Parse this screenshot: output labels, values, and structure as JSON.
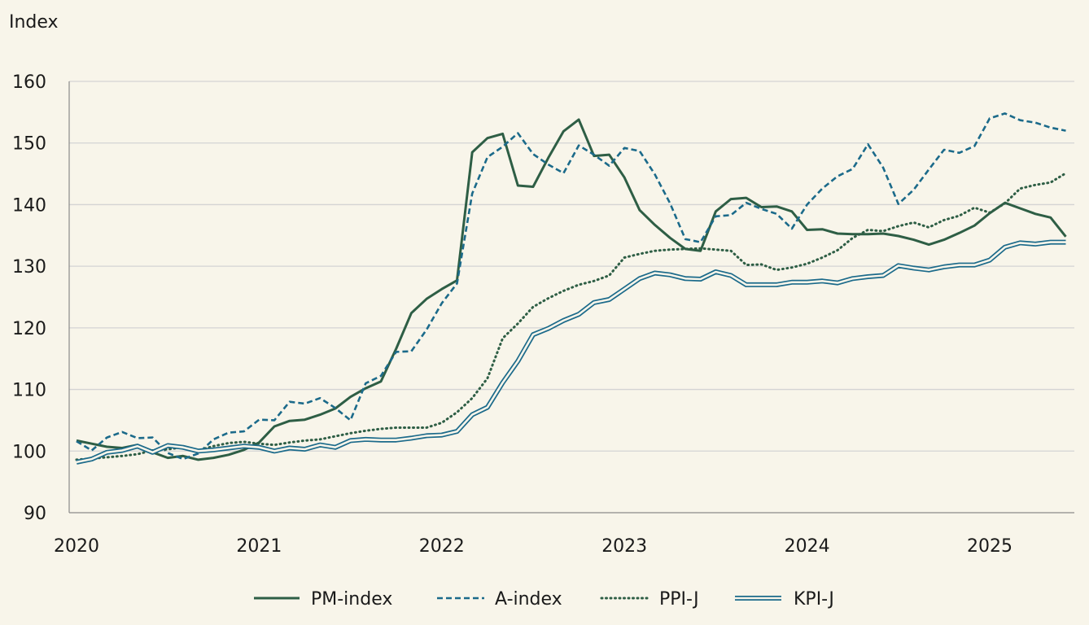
{
  "chart_data": {
    "type": "line",
    "ylabel": "Index",
    "ylim": [
      90,
      160
    ],
    "yticks": [
      90,
      100,
      110,
      120,
      130,
      140,
      150,
      160
    ],
    "xticks": [
      "2020",
      "2021",
      "2022",
      "2023",
      "2024",
      "2025"
    ],
    "x_start": "2020-01",
    "grid": "horizontal",
    "legend_position": "bottom",
    "series": [
      {
        "name": "PM-index",
        "style": "solid",
        "color": "#2e5e45",
        "values": [
          101.7,
          101.2,
          100.7,
          100.5,
          101.0,
          99.8,
          98.9,
          99.2,
          98.6,
          98.9,
          99.4,
          100.2,
          101.4,
          104.0,
          104.9,
          105.1,
          105.9,
          106.9,
          108.8,
          110.2,
          111.3,
          116.6,
          122.4,
          124.7,
          126.3,
          127.7,
          148.5,
          150.8,
          151.5,
          143.1,
          142.9,
          147.6,
          151.9,
          153.8,
          147.9,
          148.1,
          144.4,
          139.1,
          136.7,
          134.6,
          132.8,
          132.5,
          138.9,
          140.9,
          141.1,
          139.6,
          139.7,
          138.9,
          135.9,
          136.0,
          135.3,
          135.2,
          135.2,
          135.3,
          134.9,
          134.3,
          133.5,
          134.3,
          135.4,
          136.6,
          138.6,
          140.3,
          139.4,
          138.5,
          137.9,
          134.8
        ]
      },
      {
        "name": "A-index",
        "style": "dashed",
        "color": "#1b6a8a",
        "values": [
          101.6,
          100.1,
          102.2,
          103.1,
          102.1,
          102.2,
          99.7,
          98.7,
          99.6,
          101.9,
          103.0,
          103.2,
          105.1,
          105.0,
          108.0,
          107.7,
          108.6,
          107.0,
          105.0,
          111.0,
          112.2,
          116.1,
          116.2,
          119.7,
          124.0,
          127.2,
          141.8,
          147.7,
          149.4,
          151.6,
          148.2,
          146.5,
          145.1,
          149.6,
          148.1,
          146.3,
          149.2,
          148.7,
          144.9,
          140.2,
          134.4,
          133.9,
          138.1,
          138.3,
          140.3,
          139.3,
          138.5,
          136.1,
          140.0,
          142.6,
          144.6,
          145.8,
          149.8,
          146.0,
          140.1,
          142.4,
          145.7,
          148.9,
          148.4,
          149.5,
          154.0,
          154.8,
          153.7,
          153.3,
          152.5,
          152.0
        ]
      },
      {
        "name": "PPI-J",
        "style": "dotted",
        "color": "#2e5e45",
        "values": [
          98.6,
          98.8,
          99.0,
          99.2,
          99.5,
          100.1,
          100.3,
          100.6,
          100.1,
          100.8,
          101.3,
          101.5,
          101.2,
          101.0,
          101.4,
          101.7,
          101.9,
          102.4,
          102.9,
          103.3,
          103.6,
          103.8,
          103.8,
          103.8,
          104.6,
          106.3,
          108.6,
          111.8,
          118.3,
          120.7,
          123.4,
          124.8,
          126.0,
          127.0,
          127.6,
          128.5,
          131.4,
          132.0,
          132.5,
          132.7,
          132.8,
          132.9,
          132.7,
          132.5,
          130.2,
          130.3,
          129.4,
          129.8,
          130.4,
          131.4,
          132.6,
          134.6,
          135.9,
          135.7,
          136.5,
          137.1,
          136.3,
          137.5,
          138.2,
          139.5,
          138.7,
          140.2,
          142.6,
          143.2,
          143.6,
          145.1
        ]
      },
      {
        "name": "KPI-J",
        "style": "double",
        "color": "#1b6a8a",
        "values": [
          98.2,
          98.7,
          99.8,
          100.1,
          100.8,
          99.8,
          100.9,
          100.6,
          100.0,
          100.2,
          100.5,
          100.8,
          100.6,
          100.0,
          100.5,
          100.3,
          101.0,
          100.6,
          101.7,
          101.9,
          101.8,
          101.8,
          102.1,
          102.5,
          102.6,
          103.2,
          105.9,
          107.1,
          111.1,
          114.6,
          118.9,
          119.9,
          121.2,
          122.2,
          124.1,
          124.6,
          126.3,
          128.0,
          128.9,
          128.6,
          128.0,
          127.9,
          129.1,
          128.5,
          127.0,
          127.0,
          127.0,
          127.4,
          127.4,
          127.6,
          127.3,
          128.0,
          128.3,
          128.5,
          130.1,
          129.7,
          129.4,
          129.9,
          130.2,
          130.2,
          131.0,
          133.1,
          133.8,
          133.6,
          133.9,
          133.9
        ]
      }
    ]
  }
}
